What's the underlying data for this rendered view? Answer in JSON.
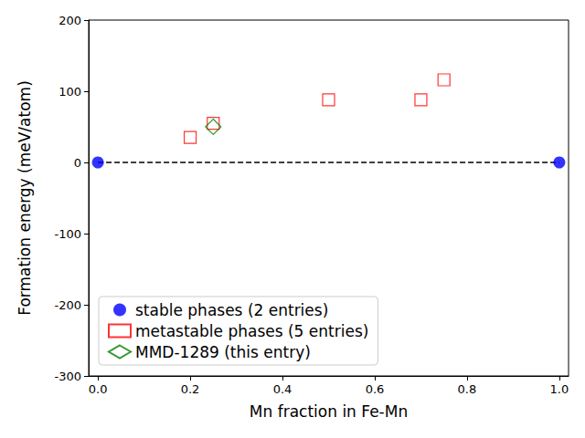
{
  "chart_data": {
    "type": "scatter",
    "x_label": "Mn fraction in Fe-Mn",
    "y_label": "Formation energy (meV/atom)",
    "xlim": [
      -0.02,
      1.02
    ],
    "ylim": [
      -300,
      200
    ],
    "xticks": [
      {
        "value": 0,
        "label": "0.0"
      },
      {
        "value": 0.2,
        "label": "0.2"
      },
      {
        "value": 0.4,
        "label": "0.4"
      },
      {
        "value": 0.6,
        "label": "0.6"
      },
      {
        "value": 0.8,
        "label": "0.8"
      },
      {
        "value": 1,
        "label": "1.0"
      }
    ],
    "yticks": [
      -300,
      -200,
      -100,
      0,
      100,
      200
    ],
    "grid": false,
    "legend": "lower left",
    "series": [
      {
        "type": "line",
        "line_style": "dashed",
        "color": "#000000",
        "x": [
          0,
          1
        ],
        "values": [
          0,
          0
        ]
      },
      {
        "name": "stable phases (2 entries)",
        "type": "scatter",
        "marker": "circle",
        "color": "#0000ff",
        "x": [
          0,
          1
        ],
        "values": [
          0,
          0
        ]
      },
      {
        "name": "metastable phases (5 entries)",
        "type": "scatter",
        "marker": "square-open",
        "color": "#ff0000",
        "x": [
          0.2,
          0.25,
          0.5,
          0.7,
          0.75
        ],
        "values": [
          35,
          55,
          88,
          88,
          116
        ]
      },
      {
        "name": "MMD-1289 (this entry)",
        "type": "scatter",
        "marker": "diamond-open",
        "color": "#008000",
        "x": [
          0.25
        ],
        "values": [
          50
        ]
      }
    ]
  }
}
